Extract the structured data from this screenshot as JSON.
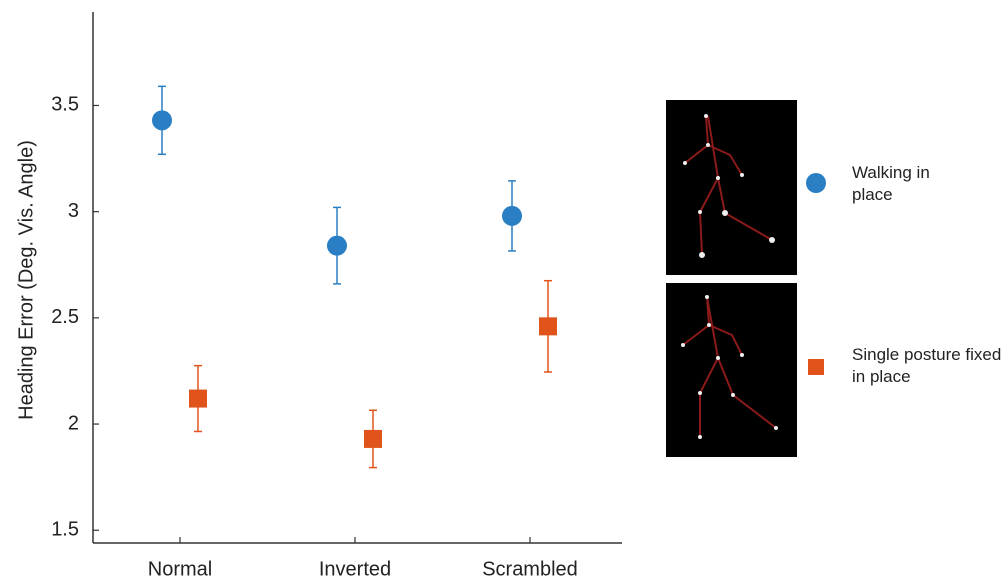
{
  "chart_data": {
    "type": "errorbar",
    "ylabel": "Heading Error (Deg. Vis. Angle)",
    "categories": [
      "Normal",
      "Inverted",
      "Scrambled"
    ],
    "series": [
      {
        "name": "Walking in place",
        "color": "#2a7fc4",
        "marker": "circle",
        "values": [
          3.43,
          2.84,
          2.98
        ],
        "errors": [
          0.16,
          0.18,
          0.165
        ]
      },
      {
        "name": "Single posture fixed in place",
        "color": "#e0541c",
        "marker": "square",
        "values": [
          2.12,
          1.93,
          2.46
        ],
        "errors": [
          0.155,
          0.135,
          0.215
        ]
      }
    ],
    "ylim": [
      1.44,
      3.94
    ],
    "yticks": [
      1.5,
      2,
      2.5,
      3,
      3.5
    ],
    "grid": false
  }
}
